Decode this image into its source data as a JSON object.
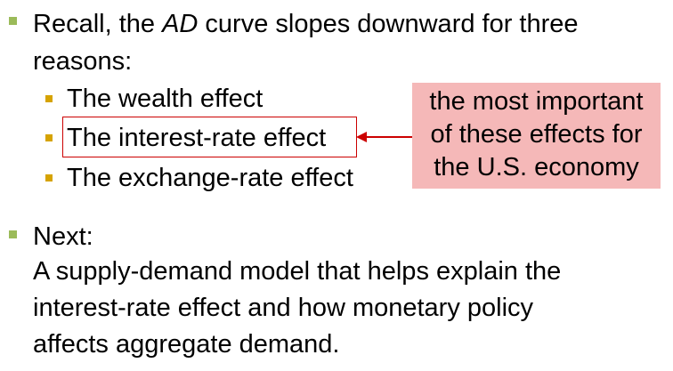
{
  "bullets": {
    "recall": {
      "part1": "Recall, the ",
      "italic": "AD",
      "part2": " curve slopes downward for three",
      "line2": "reasons:"
    },
    "sub_items": [
      {
        "label": "The wealth effect"
      },
      {
        "label": "The interest-rate effect"
      },
      {
        "label": "The exchange-rate effect"
      }
    ],
    "next": {
      "label": "Next:",
      "lines": [
        "A supply-demand model that helps explain the",
        "interest-rate effect and how monetary policy",
        "affects aggregate demand."
      ]
    }
  },
  "callout": {
    "lines": [
      "the most important",
      "of these effects for",
      "the U.S. economy"
    ]
  },
  "colors": {
    "main_bullet": "#9bbb59",
    "sub_bullet": "#d6a300",
    "highlight_border": "#cc0000",
    "callout_bg": "#f5b8b8",
    "arrow": "#cc0000"
  }
}
